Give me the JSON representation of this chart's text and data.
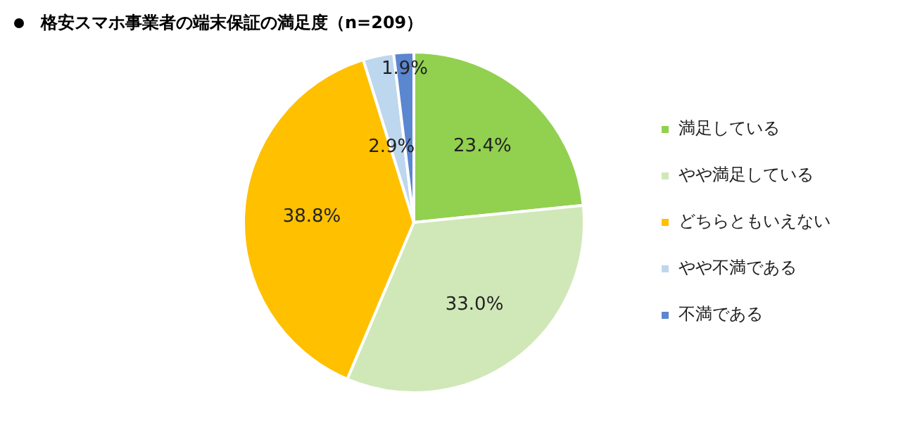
{
  "chart_data": {
    "type": "pie",
    "title": "格安スマホ事業者の端末保証の満足度（n=209）",
    "categories": [
      "満足している",
      "やや満足している",
      "どちらともいえない",
      "やや不満である",
      "不満である"
    ],
    "values": [
      23.4,
      33.0,
      38.8,
      2.9,
      1.9
    ],
    "colors": [
      "#92d050",
      "#d0e8b8",
      "#ffc000",
      "#bdd7ee",
      "#5b86d0"
    ],
    "value_labels": [
      "23.4%",
      "33.0%",
      "38.8%",
      "2.9%",
      "1.9%"
    ],
    "legend": "right"
  }
}
